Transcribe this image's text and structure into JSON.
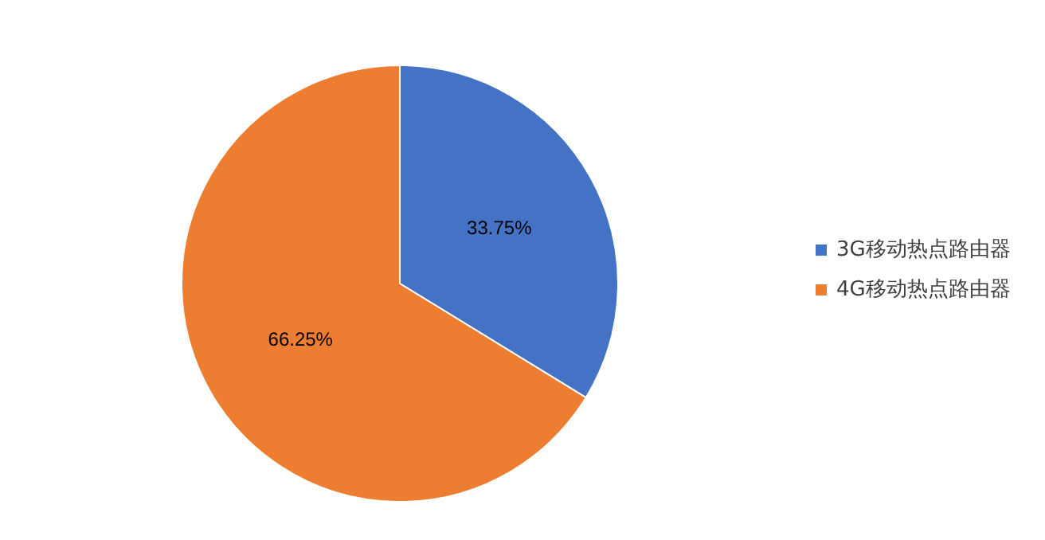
{
  "chart_data": {
    "type": "pie",
    "categories": [
      "3G移动热点路由器",
      "4G移动热点路由器"
    ],
    "values": [
      33.75,
      66.25
    ],
    "colors": [
      "#4472c4",
      "#ed7d31"
    ],
    "value_labels": [
      "33.75%",
      "66.25%"
    ],
    "legend": "right"
  }
}
